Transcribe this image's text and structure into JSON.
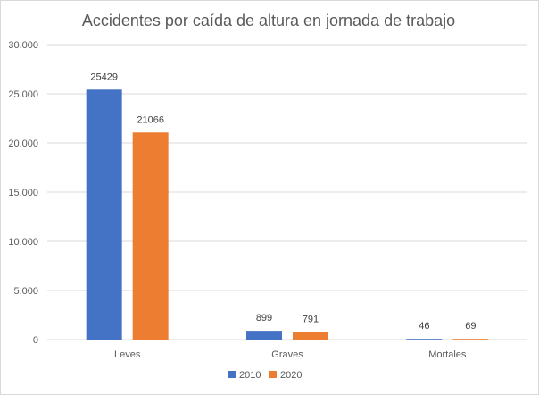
{
  "chart_data": {
    "type": "bar",
    "title": "Accidentes por caída de altura en jornada de trabajo",
    "categories": [
      "Leves",
      "Graves",
      "Mortales"
    ],
    "series": [
      {
        "name": "2010",
        "color": "#4472c4",
        "values": [
          25429,
          899,
          46
        ]
      },
      {
        "name": "2020",
        "color": "#ed7d31",
        "values": [
          21066,
          791,
          69
        ]
      }
    ],
    "ylim": [
      0,
      30000
    ],
    "yticks": [
      0,
      5000,
      10000,
      15000,
      20000,
      25000,
      30000
    ],
    "ytick_labels": [
      "0",
      "5.000",
      "10.000",
      "15.000",
      "20.000",
      "25.000",
      "30.000"
    ],
    "xlabel": "",
    "ylabel": "",
    "grid": true,
    "legend": "bottom",
    "data_labels": true,
    "gridline_color": "#d9d9d9"
  }
}
